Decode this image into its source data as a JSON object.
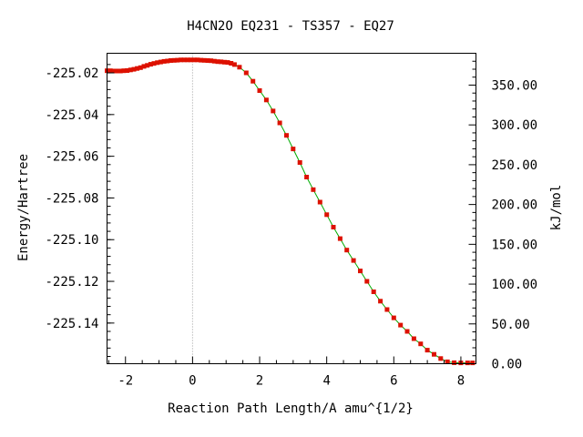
{
  "chart_data": {
    "type": "line",
    "title": "H4CN2O   EQ231 - TS357 - EQ27",
    "xlabel": "Reaction Path Length/A amu^{1/2}",
    "ylabel": "Energy/Hartree",
    "y2label": "kJ/mol",
    "xlim": [
      -2.55,
      8.45
    ],
    "ylim": [
      -225.1595,
      -225.0106
    ],
    "y2lim": [
      0.0,
      390.0
    ],
    "x_ticks": [
      {
        "value": -2,
        "label": "-2"
      },
      {
        "value": 0,
        "label": "0"
      },
      {
        "value": 2,
        "label": "2"
      },
      {
        "value": 4,
        "label": "4"
      },
      {
        "value": 6,
        "label": "6"
      },
      {
        "value": 8,
        "label": "8"
      }
    ],
    "y_ticks": [
      {
        "value": -225.02,
        "label": "-225.02"
      },
      {
        "value": -225.04,
        "label": "-225.04"
      },
      {
        "value": -225.06,
        "label": "-225.06"
      },
      {
        "value": -225.08,
        "label": "-225.08"
      },
      {
        "value": -225.1,
        "label": "-225.10"
      },
      {
        "value": -225.12,
        "label": "-225.12"
      },
      {
        "value": -225.14,
        "label": "-225.14"
      }
    ],
    "y2_ticks": [
      {
        "value": 0,
        "label": "0.00"
      },
      {
        "value": 50,
        "label": "50.00"
      },
      {
        "value": 100,
        "label": "100.00"
      },
      {
        "value": 150,
        "label": "150.00"
      },
      {
        "value": 200,
        "label": "200.00"
      },
      {
        "value": 250,
        "label": "250.00"
      },
      {
        "value": 300,
        "label": "300.00"
      },
      {
        "value": 350,
        "label": "350.00"
      }
    ],
    "ts_x": 0,
    "line_color": "#00aa00",
    "marker_color": "#dd1100",
    "series": [
      {
        "x": [
          -2.55,
          -2.45,
          -2.35,
          -2.25,
          -2.15,
          -2.05,
          -1.95,
          -1.85,
          -1.75,
          -1.65,
          -1.55,
          -1.45,
          -1.35,
          -1.25,
          -1.15,
          -1.05,
          -0.95,
          -0.85,
          -0.75,
          -0.65,
          -0.55,
          -0.45,
          -0.35,
          -0.25,
          -0.15,
          -0.05,
          0.05,
          0.15,
          0.25,
          0.35,
          0.45,
          0.55,
          0.65,
          0.75,
          0.85,
          0.95,
          1.05,
          1.15,
          1.25,
          1.4,
          1.6,
          1.8,
          2.0,
          2.2,
          2.4,
          2.6,
          2.8,
          3.0,
          3.2,
          3.4,
          3.6,
          3.8,
          4.0,
          4.2,
          4.4,
          4.6,
          4.8,
          5.0,
          5.2,
          5.4,
          5.6,
          5.8,
          6.0,
          6.2,
          6.4,
          6.6,
          6.8,
          7.0,
          7.2,
          7.4,
          7.6,
          7.8,
          8.0,
          8.2,
          8.35
        ],
        "y": [
          -225.019,
          -225.019,
          -225.0191,
          -225.0191,
          -225.0191,
          -225.019,
          -225.0189,
          -225.0186,
          -225.0183,
          -225.0179,
          -225.0175,
          -225.0169,
          -225.0164,
          -225.0159,
          -225.0155,
          -225.0151,
          -225.0148,
          -225.0145,
          -225.0143,
          -225.0141,
          -225.014,
          -225.0139,
          -225.0138,
          -225.0138,
          -225.0138,
          -225.0138,
          -225.0138,
          -225.0138,
          -225.0139,
          -225.014,
          -225.0141,
          -225.0142,
          -225.0144,
          -225.0146,
          -225.0147,
          -225.0149,
          -225.015,
          -225.0154,
          -225.016,
          -225.0173,
          -225.02,
          -225.024,
          -225.0285,
          -225.033,
          -225.0383,
          -225.044,
          -225.05,
          -225.0565,
          -225.063,
          -225.07,
          -225.076,
          -225.082,
          -225.088,
          -225.094,
          -225.0995,
          -225.105,
          -225.11,
          -225.115,
          -225.12,
          -225.125,
          -225.1295,
          -225.1335,
          -225.1375,
          -225.141,
          -225.144,
          -225.1475,
          -225.15,
          -225.153,
          -225.155,
          -225.157,
          -225.1586,
          -225.159,
          -225.1591,
          -225.1591,
          -225.1591
        ]
      }
    ]
  }
}
